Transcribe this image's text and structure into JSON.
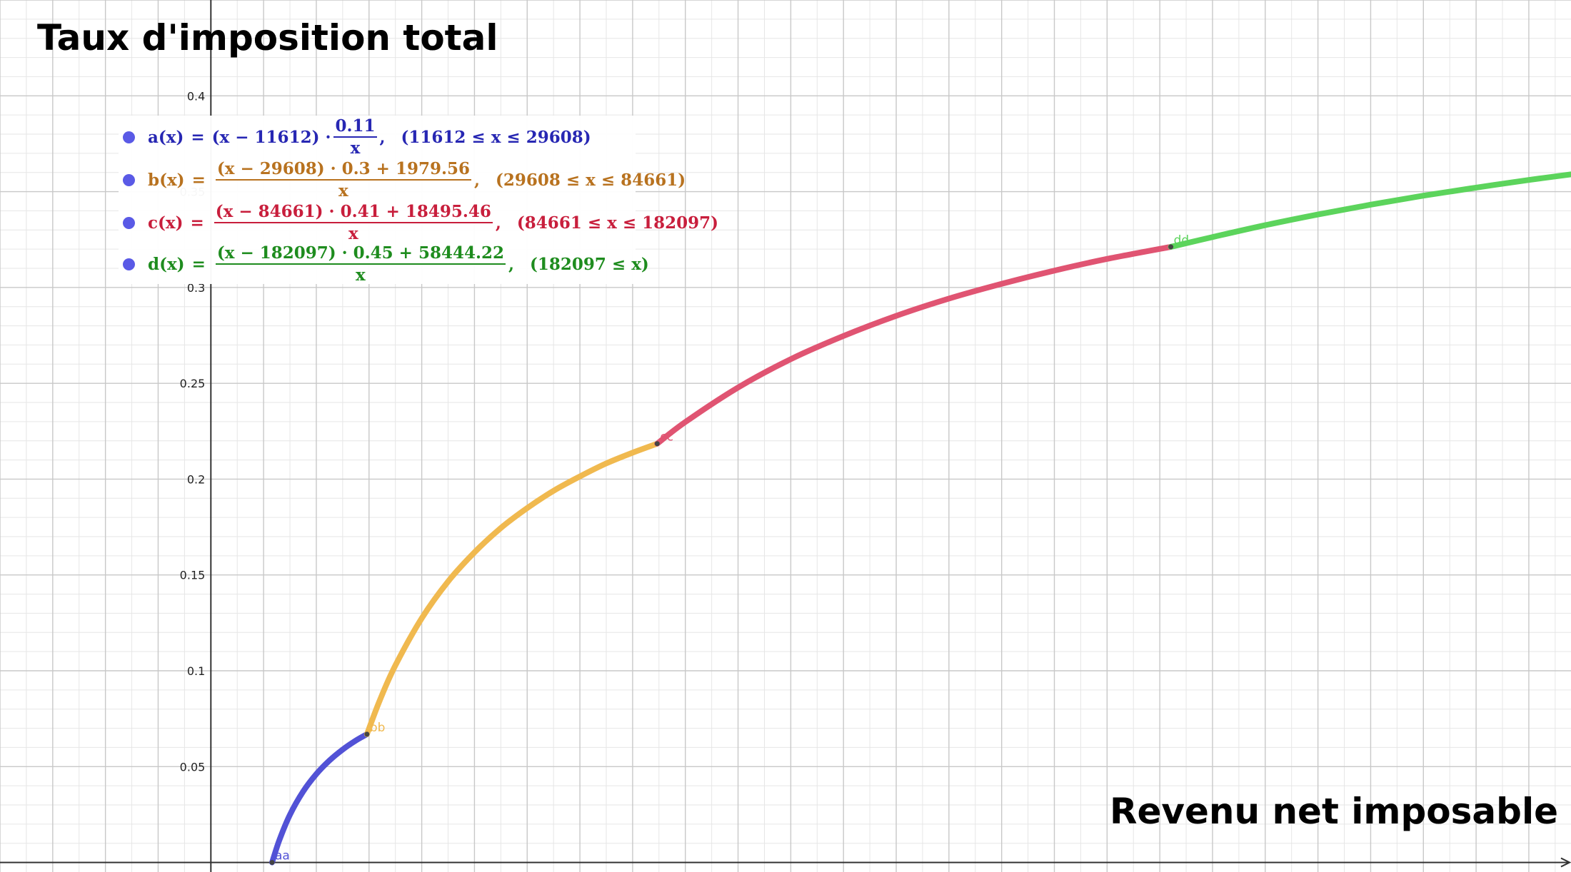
{
  "title": "Taux d'imposition total",
  "xlabel": "Revenu net imposable",
  "chart_data": {
    "type": "line",
    "title": "Taux d'imposition total",
    "xlabel": "Revenu net imposable",
    "ylabel": "",
    "xlim": [
      -40000,
      258000
    ],
    "ylim": [
      -0.005,
      0.45
    ],
    "x_ticks": [
      "0",
      "10000",
      "20000",
      "30000",
      "40000",
      "50000",
      "60000",
      "70000",
      "80000",
      "90000",
      "100000",
      "110000",
      "120000",
      "130000",
      "140000",
      "150000",
      "160000",
      "170000",
      "180000",
      "190000",
      "200000",
      "210000",
      "220000",
      "230000",
      "240000",
      "250000"
    ],
    "y_ticks": [
      "0.05",
      "0.1",
      "0.15",
      "0.2",
      "0.25",
      "0.3",
      "0.35",
      "0.4"
    ],
    "grid": true,
    "series": [
      {
        "name": "a",
        "color": "#5252d6",
        "point_label": "aa",
        "formula": {
          "lhs": "a(x)",
          "num": "(x − 11612) ·",
          "frac_num": "0.11",
          "frac_den": "x",
          "domain": "(11612 ≤ x ≤ 29608)"
        },
        "x": [
          11612,
          13000,
          15000,
          17500,
          20000,
          22500,
          25000,
          27500,
          29608
        ],
        "y": [
          0.0,
          0.0117,
          0.0249,
          0.037,
          0.0461,
          0.0532,
          0.0589,
          0.0636,
          0.0669
        ]
      },
      {
        "name": "b",
        "color": "#f0b94f",
        "point_label": "bb",
        "formula": {
          "lhs": "b(x)",
          "num": "(x − 29608) · 0.3 + 1979.56",
          "den": "x",
          "domain": "(29608 ≤ x ≤ 84661)"
        },
        "x": [
          29608,
          32000,
          35000,
          40000,
          45000,
          50000,
          55000,
          60000,
          65000,
          70000,
          75000,
          80000,
          84661
        ],
        "y": [
          0.0669,
          0.0843,
          0.1028,
          0.1274,
          0.1466,
          0.1618,
          0.1745,
          0.1849,
          0.1939,
          0.2014,
          0.2082,
          0.2138,
          0.2185
        ]
      },
      {
        "name": "c",
        "color": "#e05472",
        "point_label": "cc",
        "formula": {
          "lhs": "c(x)",
          "num": "(x − 84661) · 0.41 + 18495.46",
          "den": "x",
          "domain": "(84661 ≤ x ≤ 182097)"
        },
        "x": [
          84661,
          90000,
          100000,
          110000,
          120000,
          130000,
          140000,
          150000,
          160000,
          170000,
          182097
        ],
        "y": [
          0.2185,
          0.2298,
          0.2478,
          0.2626,
          0.2747,
          0.2852,
          0.2942,
          0.3019,
          0.3088,
          0.3149,
          0.3212
        ]
      },
      {
        "name": "d",
        "color": "#5cd45c",
        "point_label": "dd",
        "formula": {
          "lhs": "d(x)",
          "num": "(x − 182097) · 0.45 + 58444.22",
          "den": "x",
          "domain": "(182097 ≤ x)"
        },
        "x": [
          182097,
          190000,
          200000,
          210000,
          220000,
          230000,
          240000,
          250000,
          258000
        ],
        "y": [
          0.3212,
          0.3263,
          0.3325,
          0.3381,
          0.3432,
          0.3479,
          0.3521,
          0.3561,
          0.359
        ]
      }
    ]
  }
}
